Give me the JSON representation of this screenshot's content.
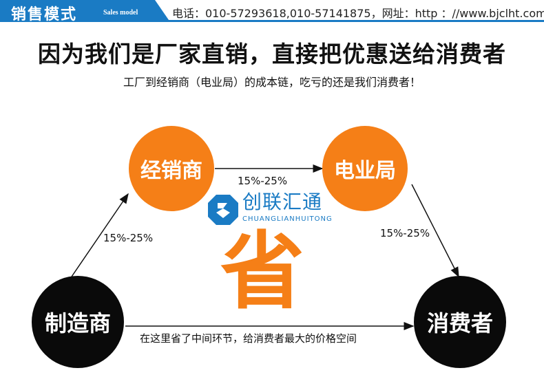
{
  "header": {
    "title": "销售模式",
    "subtitle": "Sales model",
    "contact": "电话：010-57293618,010-57141875，网址：http ：//www.bjclht.com",
    "bar_color": "#1a7bc4"
  },
  "main_title": "因为我们是厂家直销，直接把优惠送给消费者",
  "sub_title": "工厂到经销商（电业局）的成本链，吃亏的还是我们消费者！",
  "nodes": {
    "dealer": "经销商",
    "power_bureau": "电业局",
    "manufacturer": "制造商",
    "consumer": "消费者"
  },
  "edges": {
    "manufacturer_to_dealer": "15%-25%",
    "dealer_to_bureau": "15%-25%",
    "bureau_to_consumer": "15%-25%",
    "manufacturer_to_consumer": "在这里省了中间环节，给消费者最大的价格空间"
  },
  "center_char": "省",
  "logo": {
    "name": "创联汇通",
    "pinyin": "CHUANGLIANHUITONG"
  },
  "colors": {
    "orange": "#f57f17",
    "black": "#0a0a0a",
    "blue": "#1a7bc4"
  }
}
